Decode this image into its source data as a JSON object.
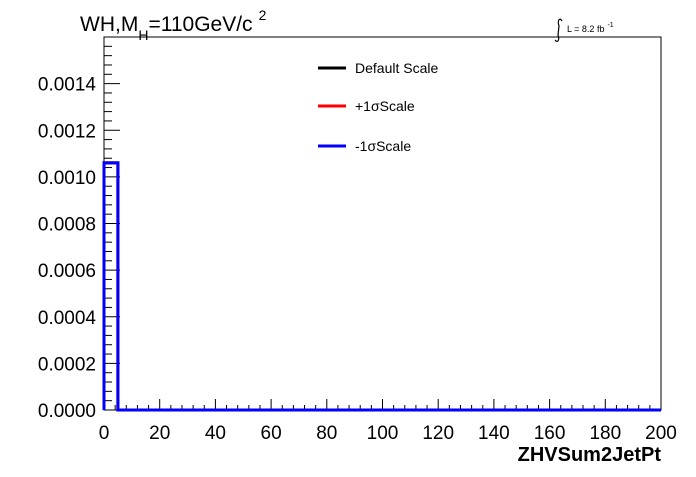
{
  "chart_data": {
    "type": "line",
    "title": {
      "prefix": "WH,M",
      "subscript": "H",
      "suffix": "=110GeV/c",
      "superscript": "2"
    },
    "lumi": {
      "text": "L = 8.2 fb",
      "superscript": "-1"
    },
    "xlabel": "ZHVSum2JetPt",
    "ylabel": "",
    "xlim": [
      0,
      200
    ],
    "ylim": [
      0,
      0.0016
    ],
    "x_ticks": [
      0,
      20,
      40,
      60,
      80,
      100,
      120,
      140,
      160,
      180,
      200
    ],
    "x_tick_labels": [
      "0",
      "20",
      "40",
      "60",
      "80",
      "100",
      "120",
      "140",
      "160",
      "180",
      "200"
    ],
    "y_ticks": [
      0,
      0.0002,
      0.0004,
      0.0006,
      0.0008,
      0.001,
      0.0012,
      0.0014
    ],
    "y_tick_labels": [
      "0.0000",
      "0.0002",
      "0.0004",
      "0.0006",
      "0.0008",
      "0.0010",
      "0.0012",
      "0.0014"
    ],
    "grid": false,
    "legend_position": "top-center",
    "series": [
      {
        "name": "Default Scale",
        "color": "#000000",
        "bins": [
          {
            "x0": 0,
            "x1": 5,
            "y": 0.00106
          },
          {
            "x0": 5,
            "x1": 200,
            "y": 0
          }
        ]
      },
      {
        "name": "+1σScale",
        "color": "#ff0000",
        "bins": [
          {
            "x0": 0,
            "x1": 5,
            "y": 0.00106
          },
          {
            "x0": 5,
            "x1": 200,
            "y": 0
          }
        ]
      },
      {
        "name": "-1σScale",
        "color": "#0000ff",
        "bins": [
          {
            "x0": 0,
            "x1": 5,
            "y": 0.00106
          },
          {
            "x0": 5,
            "x1": 200,
            "y": 0
          }
        ]
      }
    ]
  }
}
